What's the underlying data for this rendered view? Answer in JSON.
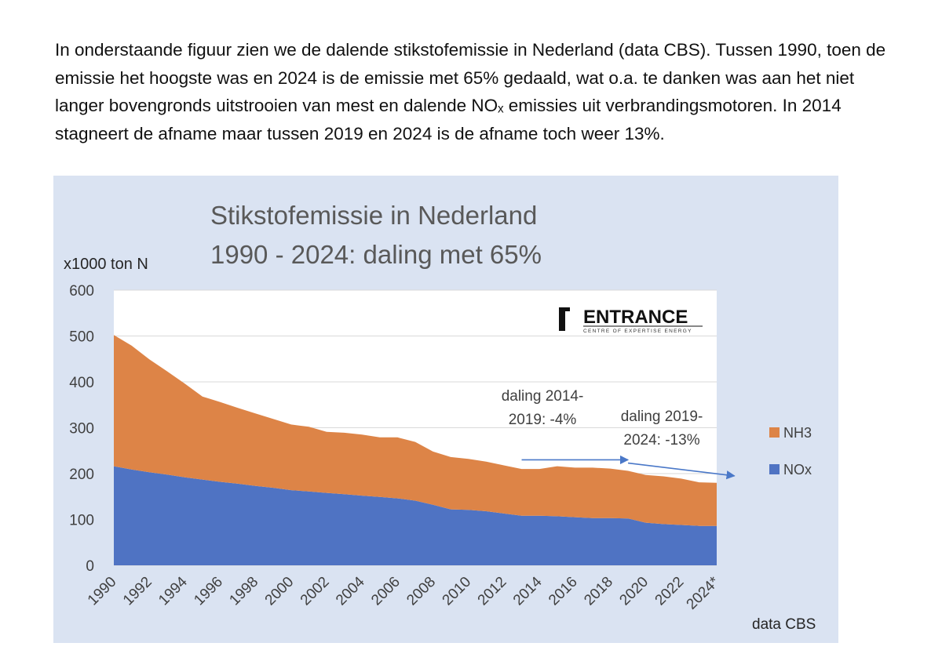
{
  "intro_text": "In onderstaande figuur zien we de dalende stikstofemissie in Nederland (data CBS). Tussen 1990, toen de emissie het hoogste was en 2024 is de emissie met 65% gedaald, wat o.a. te danken was aan het niet langer bovengronds uitstrooien van mest en dalende NOₓ emissies uit verbrandingsmotoren. In 2014 stagneert de afname maar tussen 2019 en 2024 is de afname toch weer 13%.",
  "logo": {
    "name": "ENTRANCE",
    "tagline": "CENTRE OF EXPERTISE ENERGY"
  },
  "source_label": "data CBS",
  "colors": {
    "nh3": "#dd8447",
    "nox": "#4f73c3",
    "background": "#dae3f2",
    "plot": "#ffffff",
    "arrow": "#4a78c8"
  },
  "chart_data": {
    "type": "area",
    "stacked": true,
    "title_lines": [
      "Stikstofemissie in Nederland",
      "1990 - 2024: daling met 65%"
    ],
    "ylabel": "x1000 ton N",
    "ylim": [
      0,
      600
    ],
    "yticks": [
      0,
      100,
      200,
      300,
      400,
      500,
      600
    ],
    "grid": true,
    "legend_position": "right",
    "x": [
      1990,
      1991,
      1992,
      1993,
      1994,
      1995,
      1996,
      1997,
      1998,
      1999,
      2000,
      2001,
      2002,
      2003,
      2004,
      2005,
      2006,
      2007,
      2008,
      2009,
      2010,
      2011,
      2012,
      2013,
      2014,
      2015,
      2016,
      2017,
      2018,
      2019,
      2020,
      2021,
      2022,
      2023,
      2024
    ],
    "xtick_labels": [
      "1990",
      "1992",
      "1994",
      "1996",
      "1998",
      "2000",
      "2002",
      "2004",
      "2006",
      "2008",
      "2010",
      "2012",
      "2014",
      "2016",
      "2018",
      "2020",
      "2022",
      "2024*"
    ],
    "series": [
      {
        "name": "NOx",
        "values": [
          216,
          209,
          203,
          198,
          192,
          187,
          182,
          178,
          173,
          169,
          164,
          161,
          158,
          155,
          152,
          149,
          146,
          141,
          132,
          122,
          121,
          118,
          113,
          108,
          108,
          107,
          105,
          103,
          103,
          102,
          93,
          90,
          88,
          86,
          86
        ]
      },
      {
        "name": "NH3",
        "values": [
          286,
          270,
          246,
          225,
          204,
          181,
          174,
          165,
          158,
          150,
          143,
          141,
          133,
          134,
          133,
          130,
          133,
          128,
          116,
          114,
          111,
          108,
          105,
          102,
          102,
          109,
          108,
          110,
          108,
          104,
          104,
          104,
          101,
          95,
          94
        ]
      }
    ],
    "annotations": [
      {
        "lines": [
          "daling 2014-",
          "2019: -4%"
        ],
        "arrow_from": [
          2013,
          230
        ],
        "arrow_to": [
          2019,
          230
        ]
      },
      {
        "lines": [
          "daling 2019-",
          "2024: -13%"
        ],
        "arrow_from": [
          2019,
          223
        ],
        "arrow_to": [
          2025,
          195
        ]
      }
    ]
  }
}
